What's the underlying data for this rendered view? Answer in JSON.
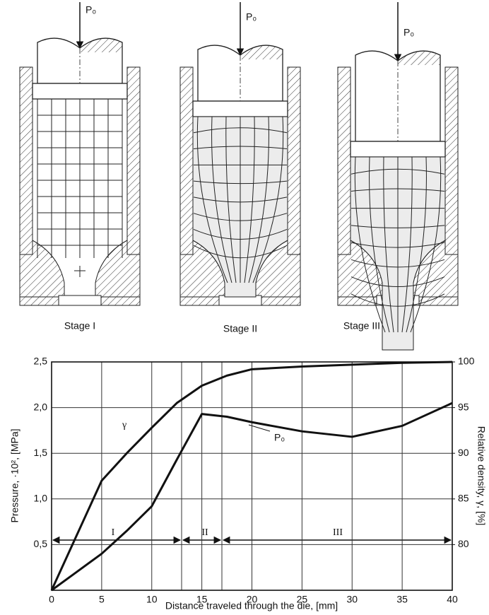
{
  "diagram": {
    "stages": [
      {
        "label": "Stage I",
        "force": "P₀"
      },
      {
        "label": "Stage II",
        "force": "P₀"
      },
      {
        "label": "Stage III",
        "force": "P₀"
      }
    ]
  },
  "chart_data": {
    "type": "line",
    "x_label": "Distance traveled through the die, [mm]",
    "y_label": "Pressure, ·10², [MPa]",
    "y2_label": "Relative density, γ, [%]",
    "x": [
      0,
      2.5,
      5,
      7.5,
      10,
      12.5,
      15,
      17.5,
      20,
      25,
      30,
      35,
      40
    ],
    "series": [
      {
        "name": "γ",
        "color": "#111111",
        "axis": "y2",
        "values": [
          75,
          81,
          87,
          90,
          92.8,
          95.5,
          97.4,
          98.5,
          99.2,
          99.5,
          99.7,
          99.9,
          100
        ]
      },
      {
        "name": "P₀",
        "color": "#111111",
        "values": [
          0,
          0.2,
          0.4,
          0.65,
          0.92,
          1.43,
          1.93,
          1.9,
          1.84,
          1.74,
          1.68,
          1.8,
          2.05
        ]
      }
    ],
    "stage_labels": [
      "I",
      "II",
      "III"
    ],
    "xlim": [
      0,
      40
    ],
    "xticks": [
      0,
      5,
      10,
      15,
      20,
      25,
      30,
      35,
      40
    ],
    "ylim": [
      0,
      2.5
    ],
    "yticks": [
      {
        "value": 0.5,
        "label": "0,5"
      },
      {
        "value": 1,
        "label": "1,0"
      },
      {
        "value": 1.5,
        "label": "1,5"
      },
      {
        "value": 2,
        "label": "2,0"
      },
      {
        "value": 2.5,
        "label": "2,5"
      }
    ],
    "y2lim": [
      75,
      100
    ],
    "y2ticks": [
      80,
      85,
      90,
      95,
      100
    ],
    "grid": true
  }
}
